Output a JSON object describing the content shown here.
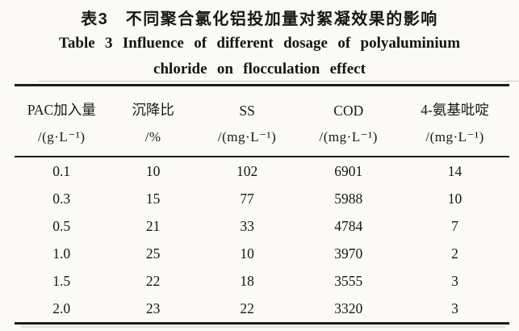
{
  "titles": {
    "zh": "表3　不同聚合氯化铝投加量对絮凝效果的影响",
    "en_line1": "Table 3  Influence of different dosage of polyaluminium",
    "en_line2": "chloride on flocculation effect"
  },
  "chart_data": {
    "type": "table",
    "title_zh": "表3 不同聚合氯化铝投加量对絮凝效果的影响",
    "title_en": "Table 3 Influence of different dosage of polyaluminium chloride on flocculation effect",
    "columns": [
      {
        "name": "PAC加入量",
        "unit": "/(g·L⁻¹)"
      },
      {
        "name": "沉降比",
        "unit": "/%"
      },
      {
        "name": "SS",
        "unit": "/(mg·L⁻¹)"
      },
      {
        "name": "COD",
        "unit": "/(mg·L⁻¹)"
      },
      {
        "name": "4-氨基吡啶",
        "unit": "/(mg·L⁻¹)"
      }
    ],
    "rows": [
      [
        "0.1",
        "10",
        "102",
        "6901",
        "14"
      ],
      [
        "0.3",
        "15",
        "77",
        "5988",
        "10"
      ],
      [
        "0.5",
        "21",
        "33",
        "4784",
        "7"
      ],
      [
        "1.0",
        "25",
        "10",
        "3970",
        "2"
      ],
      [
        "1.5",
        "22",
        "18",
        "3555",
        "3"
      ],
      [
        "2.0",
        "23",
        "22",
        "3320",
        "3"
      ]
    ]
  }
}
